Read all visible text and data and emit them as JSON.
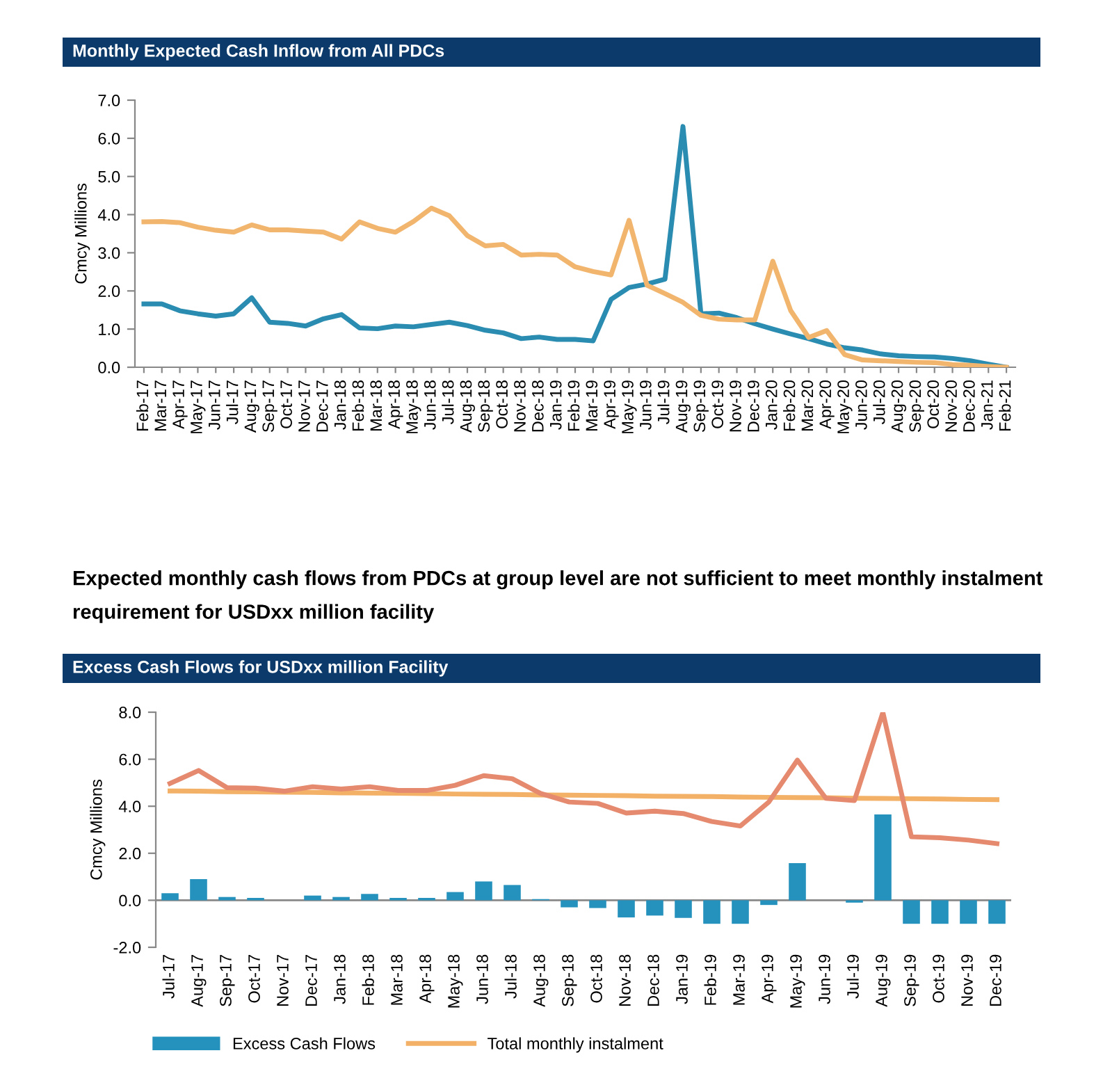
{
  "chart_data": [
    {
      "type": "line",
      "title": "Monthly Expected Cash Inflow from All PDCs",
      "ylabel": "Cmcy Millions",
      "categories": [
        "Feb-17",
        "Mar-17",
        "Apr-17",
        "May-17",
        "Jun-17",
        "Jul-17",
        "Aug-17",
        "Sep-17",
        "Oct-17",
        "Nov-17",
        "Dec-17",
        "Jan-18",
        "Feb-18",
        "Mar-18",
        "Apr-18",
        "May-18",
        "Jun-18",
        "Jul-18",
        "Aug-18",
        "Sep-18",
        "Oct-18",
        "Nov-18",
        "Dec-18",
        "Jan-19",
        "Feb-19",
        "Mar-19",
        "Apr-19",
        "May-19",
        "Jun-19",
        "Jul-19",
        "Aug-19",
        "Sep-19",
        "Oct-19",
        "Nov-19",
        "Dec-19",
        "Jan-20",
        "Feb-20",
        "Mar-20",
        "Apr-20",
        "May-20",
        "Jun-20",
        "Jul-20",
        "Aug-20",
        "Sep-20",
        "Oct-20",
        "Nov-20",
        "Dec-20",
        "Jan-21",
        "Feb-21"
      ],
      "series": [
        {
          "color": "#2a8cb0",
          "values": [
            1.66,
            1.66,
            1.48,
            1.4,
            1.34,
            1.4,
            1.82,
            1.18,
            1.15,
            1.08,
            1.27,
            1.38,
            1.03,
            1.01,
            1.08,
            1.06,
            1.12,
            1.18,
            1.09,
            0.97,
            0.9,
            0.75,
            0.79,
            0.73,
            0.73,
            0.69,
            1.78,
            2.09,
            2.18,
            2.31,
            6.31,
            1.4,
            1.42,
            1.3,
            1.14,
            1.0,
            0.87,
            0.75,
            0.61,
            0.51,
            0.45,
            0.35,
            0.3,
            0.28,
            0.27,
            0.23,
            0.17,
            0.08,
            0.0
          ]
        },
        {
          "color": "#f2b56e",
          "values": [
            3.81,
            3.82,
            3.79,
            3.67,
            3.59,
            3.54,
            3.73,
            3.6,
            3.6,
            3.57,
            3.54,
            3.36,
            3.81,
            3.64,
            3.54,
            3.82,
            4.17,
            3.97,
            3.45,
            3.18,
            3.22,
            2.94,
            2.96,
            2.94,
            2.63,
            2.51,
            2.42,
            3.85,
            2.15,
            1.93,
            1.7,
            1.36,
            1.26,
            1.24,
            1.24,
            2.78,
            1.48,
            0.78,
            0.96,
            0.33,
            0.19,
            0.17,
            0.15,
            0.13,
            0.12,
            0.07,
            0.05,
            0.02,
            0.0
          ]
        }
      ],
      "ylim": [
        0,
        7
      ],
      "yticks": [
        {
          "value": 0,
          "label": "0.0"
        },
        {
          "value": 1,
          "label": "1.0"
        },
        {
          "value": 2,
          "label": "2.0"
        },
        {
          "value": 3,
          "label": "3.0"
        },
        {
          "value": 4,
          "label": "4.0"
        },
        {
          "value": 5,
          "label": "5.0"
        },
        {
          "value": 6,
          "label": "6.0"
        },
        {
          "value": 7,
          "label": "7.0"
        }
      ]
    },
    {
      "type": "other",
      "annotations": [
        "Expected monthly cash flows from PDCs at group level are not sufficient to meet monthly instalment requirement for USDxx million facility"
      ]
    },
    {
      "type": "bar",
      "title": "Excess Cash Flows for USDxx million Facility",
      "ylabel": "Cmcy Millions",
      "categories": [
        "Jul-17",
        "Aug-17",
        "Sep-17",
        "Oct-17",
        "Nov-17",
        "Dec-17",
        "Jan-18",
        "Feb-18",
        "Mar-18",
        "Apr-18",
        "May-18",
        "Jun-18",
        "Jul-18",
        "Aug-18",
        "Sep-18",
        "Oct-18",
        "Nov-18",
        "Dec-18",
        "Jan-19",
        "Feb-19",
        "Mar-19",
        "Apr-19",
        "May-19",
        "Jun-19",
        "Jul-19",
        "Aug-19",
        "Sep-19",
        "Oct-19",
        "Nov-19",
        "Dec-19"
      ],
      "series": [
        {
          "name": "Excess Cash Flows",
          "type": "bar",
          "color": "#2591bd",
          "values": [
            0.3,
            0.9,
            0.14,
            0.1,
            0.0,
            0.2,
            0.14,
            0.27,
            0.1,
            0.1,
            0.35,
            0.8,
            0.65,
            0.05,
            -0.3,
            -0.33,
            -0.73,
            -0.65,
            -0.75,
            -1.0,
            -1.0,
            -0.2,
            1.58,
            0.0,
            -0.1,
            3.65,
            -1.0,
            -1.0,
            -1.0,
            -1.0
          ]
        },
        {
          "name": "Total monthly instalment",
          "type": "line",
          "color": "#f3b067",
          "values": [
            4.65,
            4.64,
            4.62,
            4.61,
            4.6,
            4.59,
            4.57,
            4.56,
            4.55,
            4.54,
            4.52,
            4.51,
            4.5,
            4.48,
            4.47,
            4.46,
            4.45,
            4.43,
            4.42,
            4.41,
            4.39,
            4.38,
            4.37,
            4.36,
            4.34,
            4.33,
            4.32,
            4.31,
            4.29,
            4.28
          ]
        },
        {
          "type": "line",
          "color": "#e58a6e",
          "values": [
            4.97,
            5.52,
            4.79,
            4.77,
            4.64,
            4.83,
            4.73,
            4.83,
            4.67,
            4.67,
            4.89,
            5.3,
            5.17,
            4.54,
            4.18,
            4.12,
            3.71,
            3.79,
            3.69,
            3.35,
            3.16,
            4.18,
            5.96,
            4.34,
            4.24,
            7.99,
            2.7,
            2.66,
            2.56,
            2.41
          ]
        }
      ],
      "ylim": [
        -2,
        8
      ],
      "yticks": [
        {
          "value": -2,
          "label": "-2.0"
        },
        {
          "value": 0,
          "label": "0.0"
        },
        {
          "value": 2,
          "label": "2.0"
        },
        {
          "value": 4,
          "label": "4.0"
        },
        {
          "value": 6,
          "label": "6.0"
        },
        {
          "value": 8,
          "label": "8.0"
        }
      ],
      "legend": "bottom"
    }
  ]
}
